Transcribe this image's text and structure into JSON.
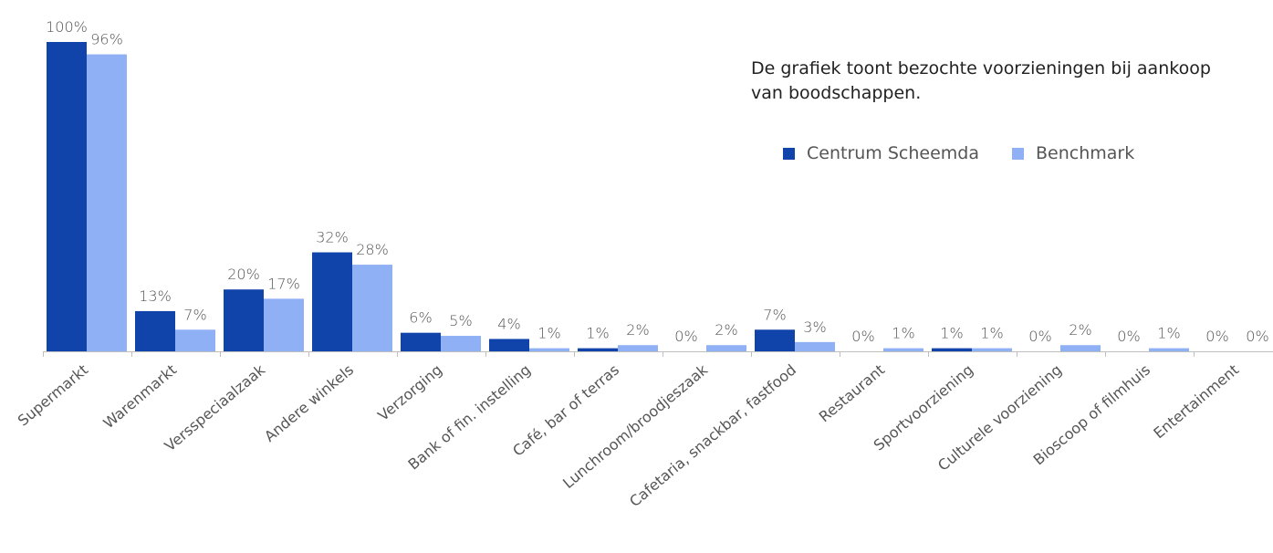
{
  "note": "De grafiek toont bezochte voorzieningen bij aankoop van boodschappen.",
  "colors": {
    "series1": "#1144aa",
    "series2": "#8fb0f5",
    "axis": "#bfbfbf",
    "text": "#555555"
  },
  "chart_data": {
    "type": "bar",
    "categories": [
      "Supermarkt",
      "Warenmarkt",
      "Versspeciaalzaak",
      "Andere winkels",
      "Verzorging",
      "Bank of fin. instelling",
      "Café, bar of terras",
      "Lunchroom/broodjeszaak",
      "Cafetaria, snackbar, fastfood",
      "Restaurant",
      "Sportvoorziening",
      "Culturele voorziening",
      "Bioscoop of filmhuis",
      "Entertainment"
    ],
    "series": [
      {
        "name": "Centrum Scheemda",
        "values": [
          100,
          13,
          20,
          32,
          6,
          4,
          1,
          0,
          7,
          0,
          1,
          0,
          0,
          0
        ],
        "labels": [
          "100%",
          "13%",
          "20%",
          "32%",
          "6%",
          "4%",
          "1%",
          "0%",
          "7%",
          "0%",
          "1%",
          "0%",
          "0%",
          "0%"
        ]
      },
      {
        "name": "Benchmark",
        "values": [
          96,
          7,
          17,
          28,
          5,
          1,
          2,
          2,
          3,
          1,
          1,
          2,
          1,
          0
        ],
        "labels": [
          "96%",
          "7%",
          "17%",
          "28%",
          "5%",
          "1%",
          "2%",
          "2%",
          "3%",
          "1%",
          "1%",
          "2%",
          "1%",
          "0%"
        ]
      }
    ],
    "ylim": [
      0,
      100
    ],
    "grid": false,
    "legend_position": "top-right"
  }
}
